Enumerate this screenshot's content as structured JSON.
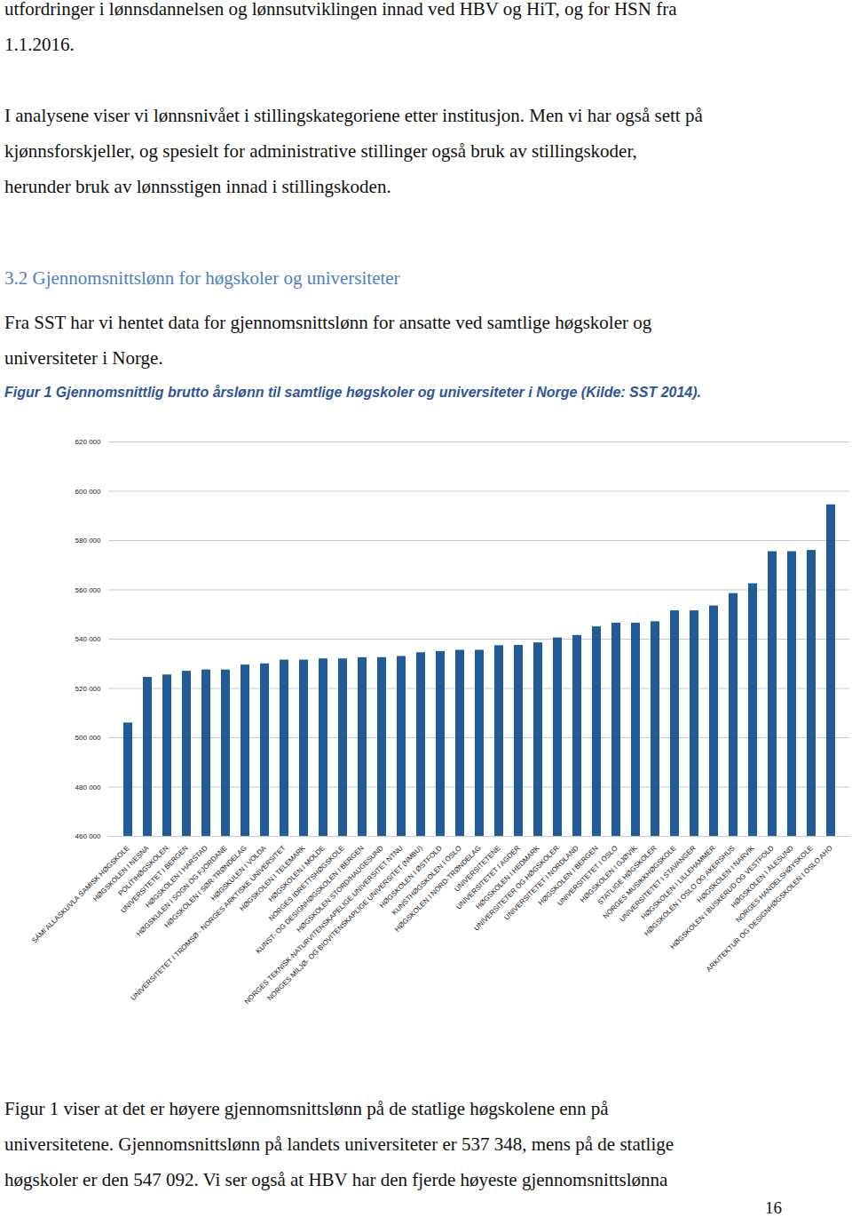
{
  "page": {
    "top_paragraph": [
      "utfordringer i lønnsdannelsen og lønnsutviklingen innad ved HBV og HiT, og for HSN fra",
      "1.1.2016."
    ],
    "paragraph_1": [
      "I analysene viser vi lønnsnivået i stillingskategoriene etter institusjon. Men vi har også sett på",
      "kjønnsforskjeller, og spesielt for administrative stillinger også bruk av stillingskoder,",
      "herunder bruk av lønnsstigen innad i stillingskoden."
    ],
    "heading": "3.2 Gjennomsnittslønn for høgskoler og universiteter",
    "paragraph_2": [
      "Fra SST har vi hentet data for gjennomsnittslønn for ansatte ved samtlige høgskoler og",
      "universiteter i Norge."
    ],
    "figure_caption": "Figur 1 Gjennomsnittlig brutto årslønn til samtlige høgskoler og universiteter i Norge (Kilde: SST 2014).",
    "bottom_paragraph": [
      "Figur 1 viser at det er høyere gjennomsnittslønn på de statlige høgskolene enn på",
      "universitetene. Gjennomsnittslønn på landets universiteter er 537 348, mens på de statlige",
      "høgskoler er den 547 092. Vi ser også at HBV har den fjerde høyeste gjennomsnittslønna"
    ],
    "page_number": "16"
  },
  "chart_data": {
    "type": "bar",
    "categories": [
      "SÁMI ALLASKUVLA SAMISK HØGSKOLE",
      "HØGSKOLEN I NESNA",
      "POLITIHØGSKOLEN",
      "UNIVERSITETET I BERGEN",
      "HØGSKOLEN I HARSTAD",
      "HØGSKULEN I SOGN OG FJORDANE",
      "HØGSKOLEN I SØR-TRØNDELAG",
      "HØGSKULEN I VOLDA",
      "UNIVERSITETET I TROMSØ - NORGES ARKTISKE UNIVERSITET",
      "HØGSKOLEN I TELEMARK",
      "HØGSKOLEN I MOLDE",
      "NORGES IDRETTSHØGSKOLE",
      "KUNST- OG DESIGNHØGSKOLEN I BERGEN",
      "HØGSKOLEN STORD/HAUGESUND",
      "NORGES TEKNISK-NATURVITENSKAPELIGE UNIVERSITET NTNU",
      "NORGES MILJØ- OG BIOVITENSKAPLIGE UNIVERSITET (NMBU)",
      "HØGSKOLEN I ØSTFOLD",
      "KUNSTHØGSKOLEN I OSLO",
      "HØGSKOLEN I NORD-TRØNDELAG",
      "UNIVERSITETENE",
      "UNIVERSITETET I AGDER",
      "HØGSKOLEN I HEDMARK",
      "UNIVERSITETER OG HØGSKOLER",
      "UNIVERSITETET I NORDLAND",
      "HØGSKOLEN I BERGEN",
      "UNIVERSITETET I OSLO",
      "HØGSKOLEN I GJØVIK",
      "STATLIGE HØGSKOLER",
      "NORGES MUSIKKHØGSKOLE",
      "UNIVERSITETET I STAVANGER",
      "HØGSKOLEN I LILLEHAMMER",
      "HØGSKOLEN I OSLO OG AKERSHUS",
      "HØGSKOLEN I NARVIK",
      "HØGSKOLEN I BUSKERUD OG VESTFOLD",
      "HØGSKOLEN I ÅLESUND",
      "NORGES HANDELSHØYSKOLE",
      "ARKITEKTUR OG DESIGNHØGSKOLEN I OSLO AHO"
    ],
    "values": [
      506000,
      524500,
      525500,
      527000,
      527500,
      527500,
      529500,
      530000,
      531500,
      531500,
      532000,
      532000,
      532500,
      532500,
      533000,
      534500,
      535000,
      535500,
      535500,
      537348,
      537500,
      538500,
      540500,
      541500,
      545000,
      546500,
      546500,
      547092,
      551500,
      551500,
      553500,
      558500,
      562500,
      575500,
      575500,
      576000,
      594500
    ],
    "color": "#215c98",
    "ylim": [
      460000,
      620000
    ],
    "yticks": [
      {
        "value": 460000,
        "label": "460 000"
      },
      {
        "value": 480000,
        "label": "480 000"
      },
      {
        "value": 500000,
        "label": "500 000"
      },
      {
        "value": 520000,
        "label": "520 000"
      },
      {
        "value": 540000,
        "label": "540 000"
      },
      {
        "value": 560000,
        "label": "560 000"
      },
      {
        "value": 580000,
        "label": "580 000"
      },
      {
        "value": 600000,
        "label": "600 000"
      },
      {
        "value": 620000,
        "label": "620 000"
      }
    ],
    "grid": true
  }
}
